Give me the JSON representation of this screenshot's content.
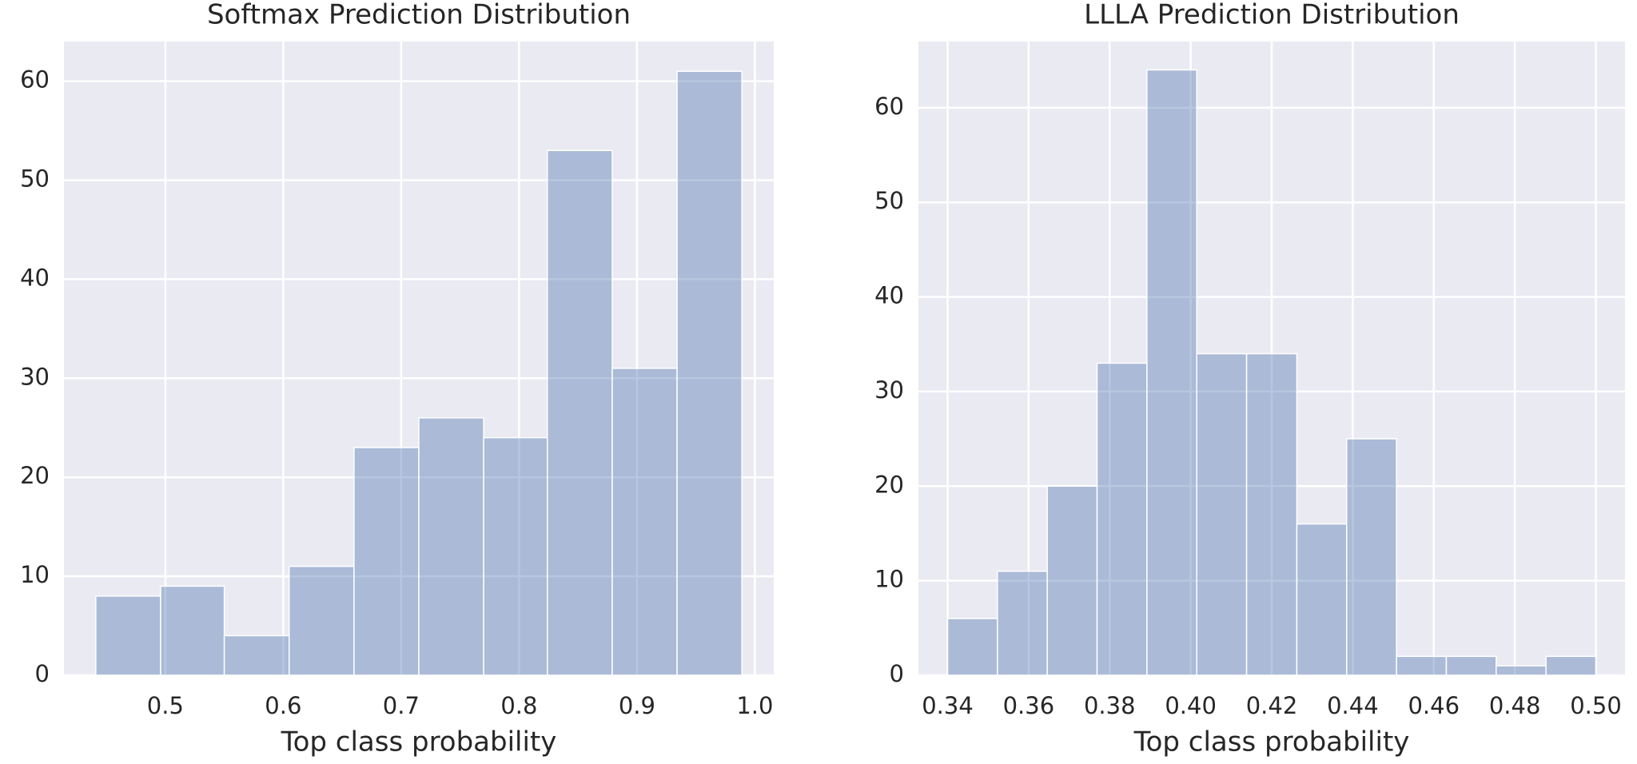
{
  "chart_data": [
    {
      "type": "histogram",
      "title": "Softmax Prediction Distribution",
      "x_label": "Top class probability",
      "bins": [
        0.441,
        0.496,
        0.55,
        0.605,
        0.66,
        0.715,
        0.77,
        0.824,
        0.879,
        0.934,
        0.989
      ],
      "values": [
        8,
        9,
        4,
        11,
        23,
        26,
        24,
        53,
        31,
        61
      ],
      "color": "#4c72b0",
      "xlim": [
        0.414,
        1.016
      ],
      "ylim": [
        0,
        64
      ],
      "xticks": [
        0.5,
        0.6,
        0.7,
        0.8,
        0.9,
        {
          "value": 1.0,
          "label": "1.0"
        }
      ],
      "yticks": [
        0,
        10,
        20,
        30,
        40,
        50,
        60
      ],
      "grid": true
    },
    {
      "type": "histogram",
      "title": "LLLA Prediction Distribution",
      "x_label": "Top class probability",
      "bins": [
        0.34,
        0.3523,
        0.3646,
        0.3769,
        0.3892,
        0.4015,
        0.4138,
        0.4262,
        0.4385,
        0.4508,
        0.4631,
        0.4754,
        0.4877,
        0.5
      ],
      "values": [
        6,
        11,
        20,
        33,
        64,
        34,
        34,
        16,
        25,
        2,
        2,
        1,
        2
      ],
      "color": "#4c72b0",
      "xlim": [
        0.3328,
        0.5072
      ],
      "ylim": [
        0,
        67
      ],
      "xticks": [
        0.34,
        0.36,
        0.38,
        {
          "value": 0.4,
          "label": "0.40"
        },
        0.42,
        0.44,
        0.46,
        0.48,
        {
          "value": 0.5,
          "label": "0.50"
        }
      ],
      "yticks": [
        0,
        10,
        20,
        30,
        40,
        50,
        60
      ],
      "grid": true
    }
  ]
}
